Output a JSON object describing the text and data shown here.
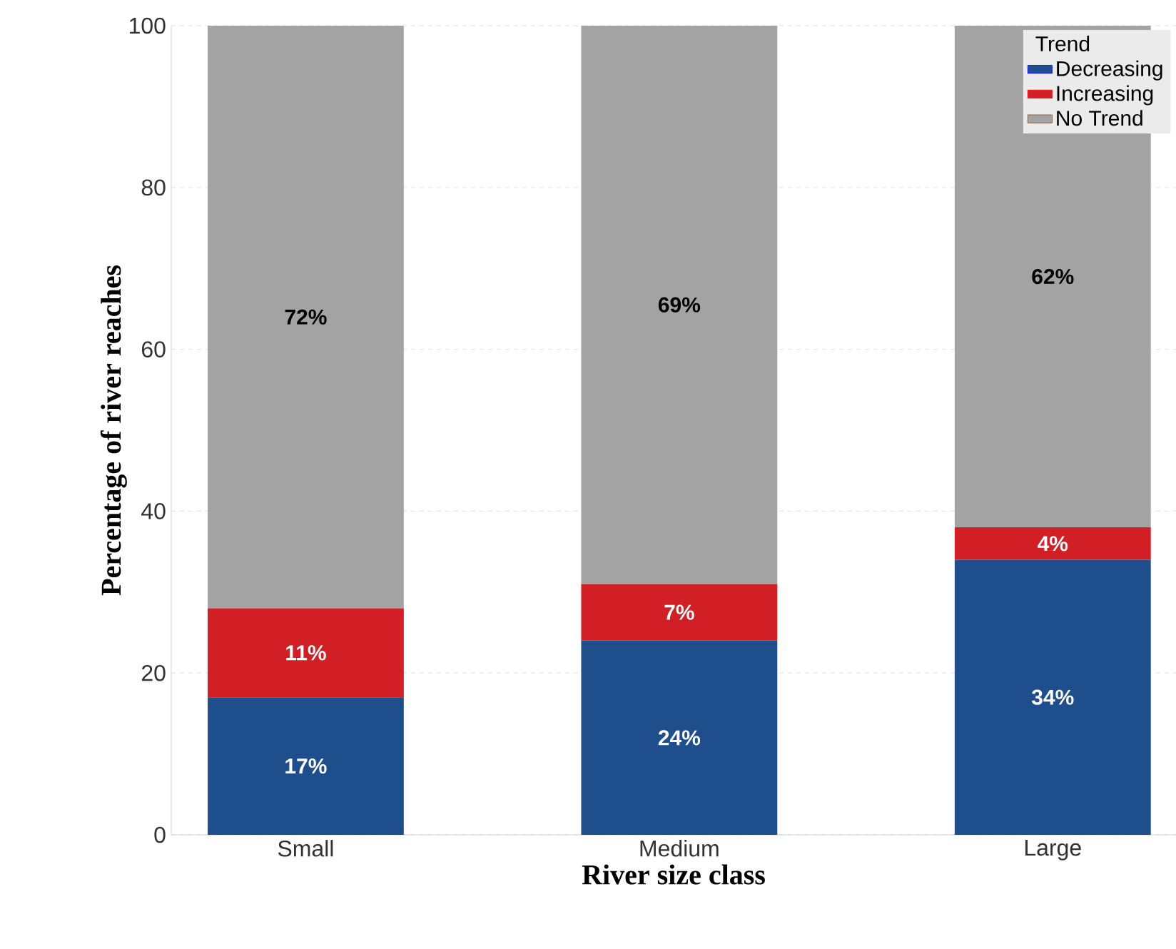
{
  "chart_data": {
    "type": "bar",
    "stacked": true,
    "xlabel": "River size class",
    "ylabel": "Percentage of river reaches",
    "legend_title": "Trend",
    "legend": "top right",
    "grid": "y",
    "categories": [
      "Small",
      "Medium",
      "Large"
    ],
    "ylim": [
      0,
      100
    ],
    "yticks": [
      0,
      20,
      40,
      60,
      80,
      100
    ],
    "series": [
      {
        "name": "Decreasing",
        "color": "#1f4e8c",
        "values": [
          17,
          24,
          34
        ],
        "value_labels": [
          "17%",
          "24%",
          "34%"
        ]
      },
      {
        "name": "Increasing",
        "color": "#d21f25",
        "values": [
          11,
          7,
          4
        ],
        "value_labels": [
          "11%",
          "7%",
          "4%"
        ]
      },
      {
        "name": "No Trend",
        "color": "#a3a3a3",
        "values": [
          72,
          69,
          62
        ],
        "value_labels": [
          "72%",
          "69%",
          "62%"
        ]
      }
    ]
  }
}
